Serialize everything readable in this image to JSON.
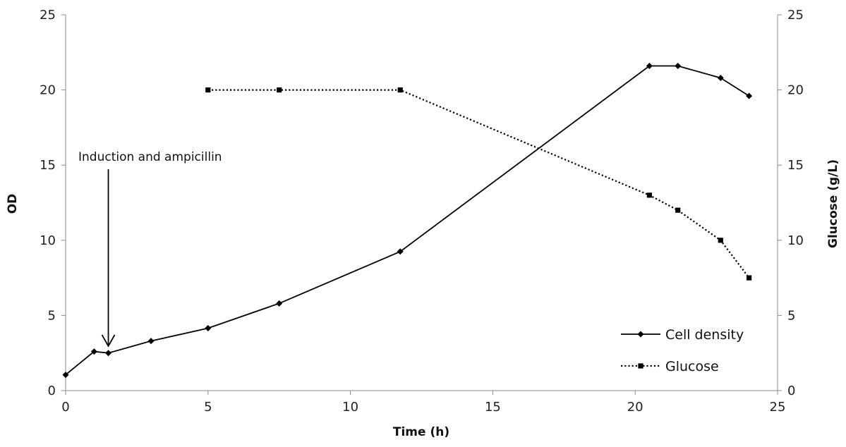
{
  "chart_data": {
    "type": "line",
    "title": "",
    "xlabel": "Time (h)",
    "ylabel": "OD",
    "y2label": "Glucose (g/L)",
    "xlim": [
      0,
      25
    ],
    "ylim": [
      0,
      25
    ],
    "y2lim": [
      0,
      25
    ],
    "xticks": [
      0,
      5,
      10,
      15,
      20,
      25
    ],
    "yticks": [
      0,
      5,
      10,
      15,
      20,
      25
    ],
    "y2ticks": [
      0,
      5,
      10,
      15,
      20,
      25
    ],
    "grid": false,
    "legend_position": "bottom-right",
    "series": [
      {
        "name": "Cell density",
        "axis": "left",
        "style": "solid",
        "marker": "diamond",
        "color": "#000000",
        "x": [
          0,
          1,
          1.5,
          3,
          5,
          7.5,
          11.75,
          20.5,
          21.5,
          23,
          24
        ],
        "y": [
          1.05,
          2.6,
          2.5,
          3.3,
          4.15,
          5.8,
          9.25,
          21.6,
          21.6,
          20.8,
          19.6
        ]
      },
      {
        "name": "Glucose",
        "axis": "right",
        "style": "dotted",
        "marker": "square",
        "color": "#000000",
        "x": [
          5,
          7.5,
          11.75,
          20.5,
          21.5,
          23,
          24
        ],
        "y": [
          20,
          20,
          20,
          13,
          12,
          10,
          7.5
        ]
      }
    ],
    "annotations": [
      {
        "text": "Induction and ampicillin",
        "x": 1.5,
        "y": 3.1
      }
    ]
  }
}
